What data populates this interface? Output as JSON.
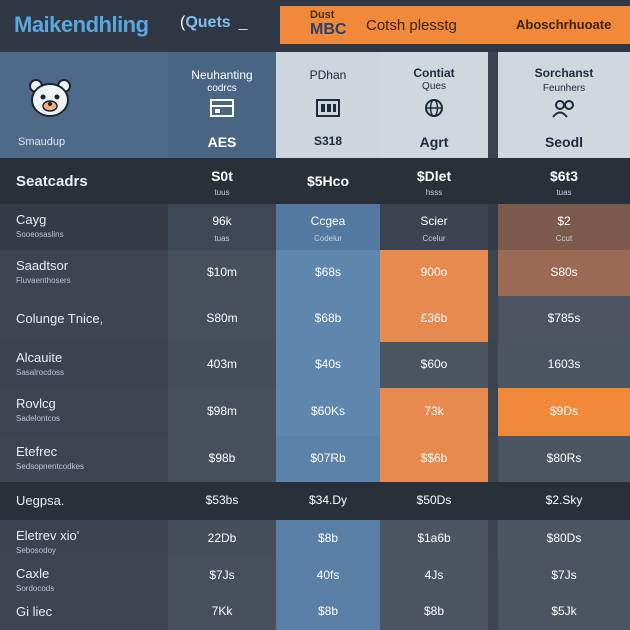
{
  "header": {
    "brand": "Maikendhling",
    "quick": "Quets",
    "quick_prefix": "(",
    "quick_dash": "_",
    "promo_small": "Dust",
    "promo_big": "MBC",
    "promo_text": "Cotsh plesstg",
    "promo2_text": "Aboschrhuoate",
    "colors": {
      "accent": "#f08a3a",
      "bg": "#3b4350",
      "blue": "#4f6a88"
    }
  },
  "plans": [
    {
      "name": "Neuhanting",
      "sub": "codrcs",
      "price": "AES",
      "icon": "grid-icon"
    },
    {
      "name": "PDhan",
      "sub": "",
      "price": "S318",
      "icon": "server-icon"
    },
    {
      "name": "Contiat",
      "sub": "Ques",
      "price": "Agrt",
      "icon": "globe-icon"
    },
    {
      "name": "Sorchanst",
      "sub": "Feunhers",
      "price": "Seodl",
      "icon": "users-icon"
    }
  ],
  "mascot_label": "Smaudup",
  "rows": [
    {
      "label": "Seatcadrs",
      "sub": "",
      "values": [
        {
          "v": "S0t",
          "s": "tuus"
        },
        {
          "v": "$5Hco",
          "s": ""
        },
        {
          "v": "$Dlet",
          "s": "hsss"
        },
        {
          "v": "$6t3",
          "s": "tuas"
        }
      ]
    },
    {
      "label": "Cayg",
      "sub": "Sooeosaslins",
      "values": [
        {
          "v": "96k",
          "s": "tuas"
        },
        {
          "v": "Ccgea",
          "s": "Codelur"
        },
        {
          "v": "Scier",
          "s": "Ccelur"
        },
        {
          "v": "$2",
          "s": "Ccut"
        }
      ]
    },
    {
      "label": "Saadtsor",
      "sub": "Fluvaenthosers",
      "values": [
        {
          "v": "$10m",
          "s": ""
        },
        {
          "v": "$68s",
          "s": ""
        },
        {
          "v": "900o",
          "s": ""
        },
        {
          "v": "S80s",
          "s": ""
        }
      ]
    },
    {
      "label": "Colunge Tnice,",
      "sub": "",
      "values": [
        {
          "v": "S80m",
          "s": ""
        },
        {
          "v": "$68b",
          "s": ""
        },
        {
          "v": "£36b",
          "s": ""
        },
        {
          "v": "$785s",
          "s": ""
        }
      ]
    },
    {
      "label": "Alcauite",
      "sub": "Sasalrocdoss",
      "values": [
        {
          "v": "403m",
          "s": ""
        },
        {
          "v": "$40s",
          "s": ""
        },
        {
          "v": "$60o",
          "s": ""
        },
        {
          "v": "1603s",
          "s": ""
        }
      ]
    },
    {
      "label": "Rovlcg",
      "sub": "Sadelontcos",
      "values": [
        {
          "v": "$98m",
          "s": ""
        },
        {
          "v": "$60Ks",
          "s": ""
        },
        {
          "v": "73k",
          "s": ""
        },
        {
          "v": "$9Ds",
          "s": ""
        }
      ]
    },
    {
      "label": "Etefrec",
      "sub": "Sedsopnentcodkes",
      "values": [
        {
          "v": "$98b",
          "s": ""
        },
        {
          "v": "$07Rb",
          "s": ""
        },
        {
          "v": "$$6b",
          "s": ""
        },
        {
          "v": "$80Rs",
          "s": ""
        }
      ]
    },
    {
      "label": "Uegpsa.",
      "sub": "",
      "values": [
        {
          "v": "$53bs",
          "s": ""
        },
        {
          "v": "$34.Dy",
          "s": ""
        },
        {
          "v": "$50Ds",
          "s": ""
        },
        {
          "v": "$2.Sky",
          "s": ""
        }
      ]
    },
    {
      "label": "Eletrev xio'",
      "sub": "Sebosodoy",
      "values": [
        {
          "v": "22Db",
          "s": ""
        },
        {
          "v": "$8b",
          "s": ""
        },
        {
          "v": "$1a6b",
          "s": ""
        },
        {
          "v": "$80Ds",
          "s": ""
        }
      ]
    },
    {
      "label": "Caxle",
      "sub": "Sordocods",
      "values": [
        {
          "v": "$7Js",
          "s": ""
        },
        {
          "v": "40fs",
          "s": ""
        },
        {
          "v": "4Js",
          "s": ""
        },
        {
          "v": "$7Js",
          "s": ""
        }
      ]
    },
    {
      "label": "Gi liec",
      "sub": "",
      "values": [
        {
          "v": "7Kk",
          "s": ""
        },
        {
          "v": "$8b",
          "s": ""
        },
        {
          "v": "$8b",
          "s": ""
        },
        {
          "v": "$5Jk",
          "s": ""
        }
      ]
    }
  ]
}
